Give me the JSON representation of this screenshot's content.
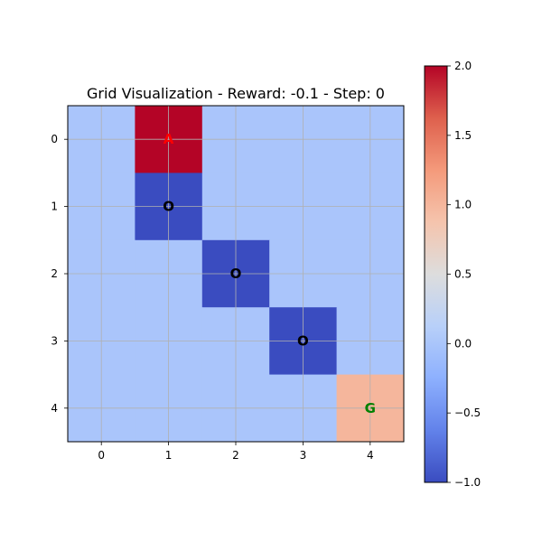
{
  "chart_data": {
    "type": "heatmap",
    "title": "Grid Visualization - Reward: -0.1 - Step: 0",
    "rows": [
      0,
      1,
      2,
      3,
      4
    ],
    "cols": [
      0,
      1,
      2,
      3,
      4
    ],
    "values": [
      [
        0,
        2,
        0,
        0,
        0
      ],
      [
        0,
        -1,
        0,
        0,
        0
      ],
      [
        0,
        0,
        -1,
        0,
        0
      ],
      [
        0,
        0,
        0,
        -1,
        0
      ],
      [
        0,
        0,
        0,
        0,
        1
      ]
    ],
    "annotations": [
      {
        "row": 0,
        "col": 1,
        "text": "A",
        "color": "#ff0000"
      },
      {
        "row": 1,
        "col": 1,
        "text": "O",
        "color": "#000000"
      },
      {
        "row": 2,
        "col": 2,
        "text": "O",
        "color": "#000000"
      },
      {
        "row": 3,
        "col": 3,
        "text": "O",
        "color": "#000000"
      },
      {
        "row": 4,
        "col": 4,
        "text": "G",
        "color": "#008000"
      }
    ],
    "colormap": "coolwarm",
    "vmin": -1.0,
    "vmax": 2.0,
    "colorbar_ticks": [
      "2.0",
      "1.5",
      "1.0",
      "0.5",
      "0.0",
      "−0.5",
      "−1.0"
    ],
    "colorbar_tick_values": [
      2.0,
      1.5,
      1.0,
      0.5,
      0.0,
      -0.5,
      -1.0
    ],
    "grid": true
  }
}
